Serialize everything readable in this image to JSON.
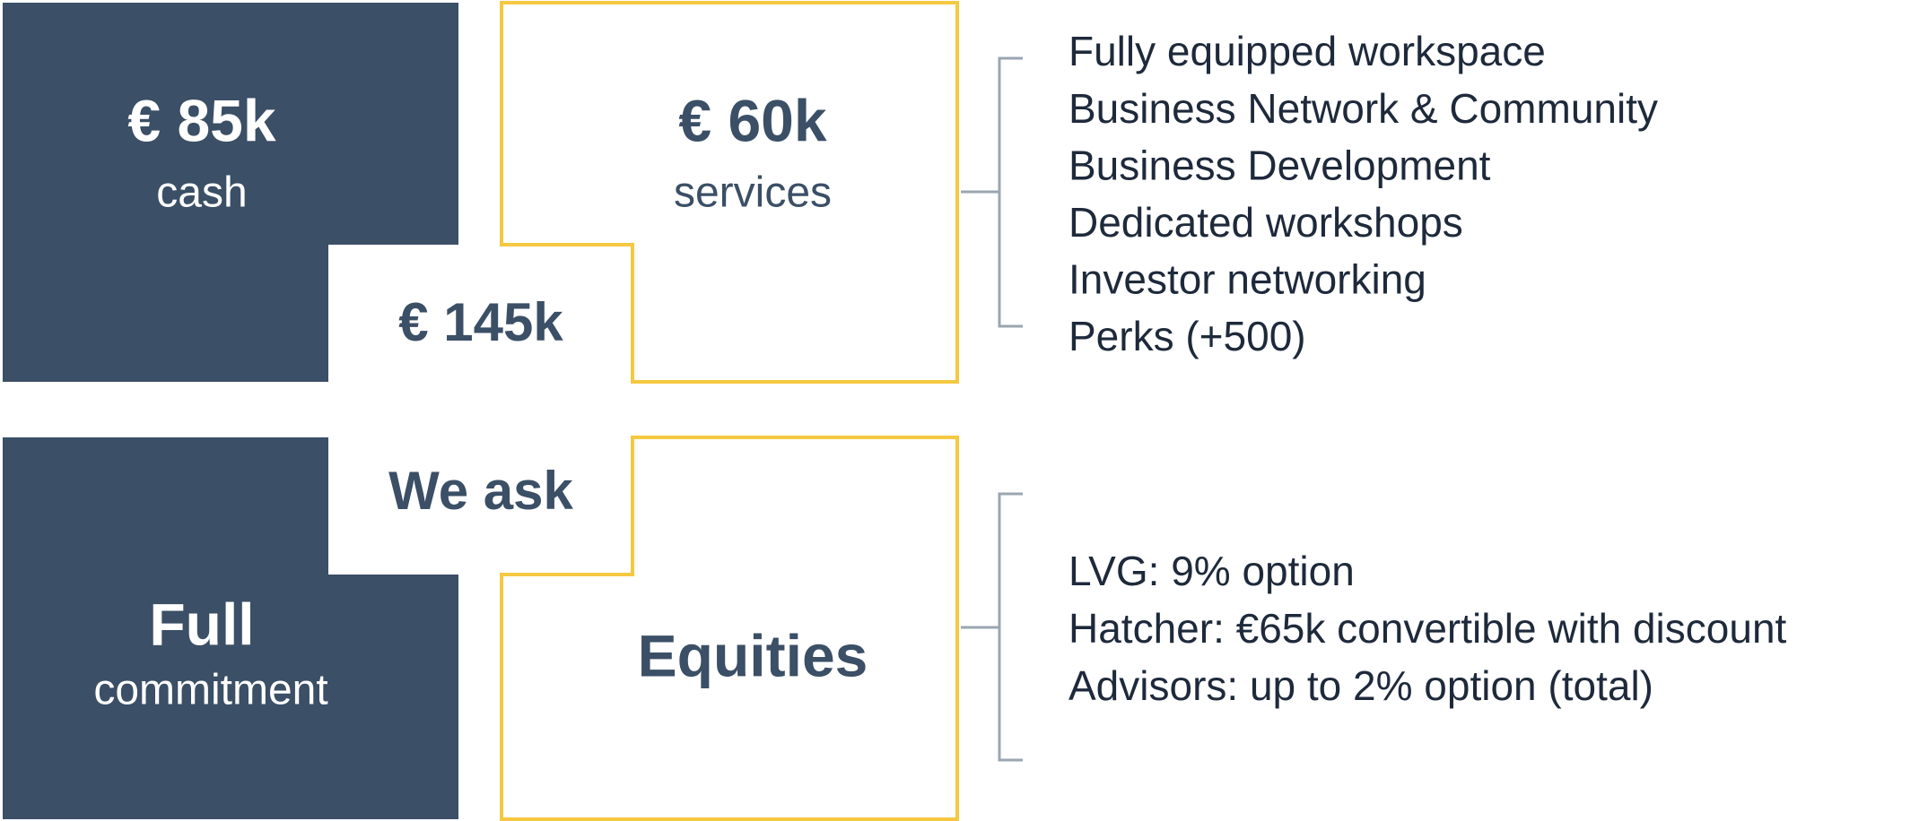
{
  "top": {
    "cash": {
      "amount": "€ 85k",
      "label": "cash"
    },
    "services": {
      "amount": "€ 60k",
      "label": "services"
    },
    "total": "€ 145k",
    "items": [
      "Fully equipped workspace",
      "Business Network & Community",
      "Business Development",
      "Dedicated workshops",
      "Investor networking",
      "Perks (+500)"
    ]
  },
  "bottom": {
    "ask": "We ask",
    "commitment": {
      "title": "Full",
      "label": "commitment"
    },
    "equities": "Equities",
    "items": [
      "LVG: 9% option",
      "Hatcher: €65k convertible with discount",
      "Advisors: up to 2% option (total)"
    ]
  }
}
